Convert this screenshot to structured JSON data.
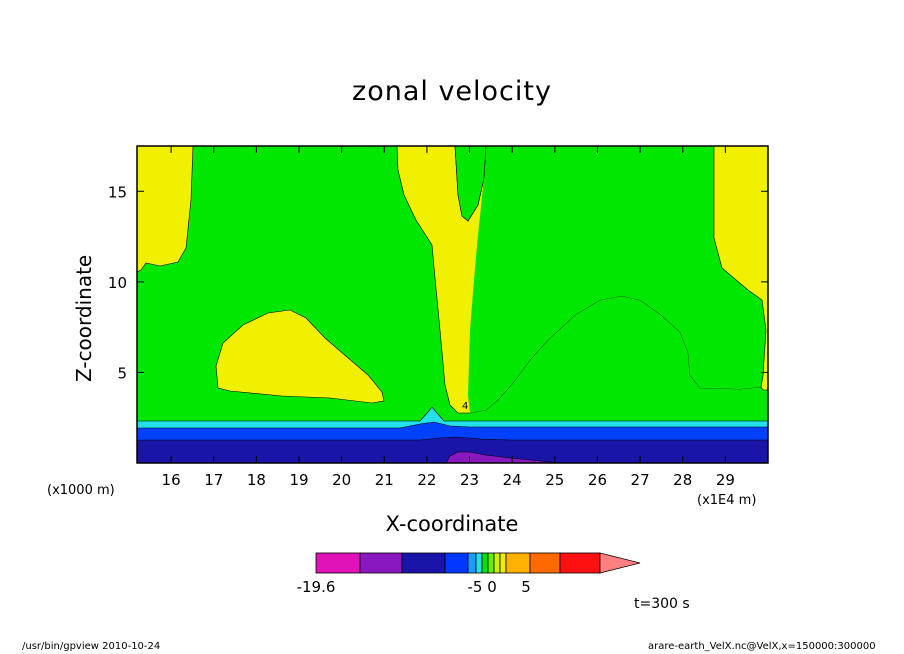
{
  "chart_data": {
    "type": "heatmap",
    "title": "zonal velocity",
    "xlabel": "X-coordinate",
    "ylabel": "Z-coordinate",
    "x_unit_label": "(x1E4 m)",
    "y_unit_label": "(x1000 m)",
    "xlim": [
      15.2,
      30.0
    ],
    "ylim": [
      0.0,
      17.5
    ],
    "x_ticks": [
      "16",
      "17",
      "18",
      "19",
      "20",
      "21",
      "22",
      "23",
      "24",
      "25",
      "26",
      "27",
      "28",
      "29"
    ],
    "y_ticks": [
      "5",
      "10",
      "15"
    ],
    "colorbar": {
      "tick_labels": [
        "-19.6",
        "-5",
        "0",
        "5"
      ],
      "colors": [
        "#e012b8",
        "#8a18c0",
        "#1a14a8",
        "#0038ff",
        "#1a9cff",
        "#22e0e8",
        "#00e600",
        "#66ee00",
        "#ccf000",
        "#eeee00",
        "#ffb000",
        "#ff6a00",
        "#ff1010",
        "#ff8080"
      ]
    },
    "contour_regions": [
      {
        "level": "positive small",
        "color": "#f0f000",
        "areas": [
          "upper-left corner",
          "left mid lobe (x 17-21, z 4-8.5)",
          "central V (x 21-26, z 3-17.5)",
          "right side (x 28-30, z 4-17.5)"
        ]
      },
      {
        "level": "near zero",
        "color": "#00e800",
        "areas": [
          "background above z 2.5"
        ]
      },
      {
        "level": "negative small",
        "color": "#22e0e8",
        "areas": [
          "band z 2-2.5"
        ]
      },
      {
        "level": "negative",
        "color": "#0040ff",
        "areas": [
          "band z 1.5-2"
        ]
      },
      {
        "level": "negative large",
        "color": "#1a14a8",
        "areas": [
          "band z 0-1.5"
        ]
      },
      {
        "level": "most negative",
        "color": "#8a18c0",
        "areas": [
          "small patch near x 22.8, z 0"
        ]
      }
    ],
    "contour_label": "4",
    "annotations": [
      "t=300 s"
    ]
  },
  "footer": {
    "left": "/usr/bin/gpview   2010-10-24",
    "right": "arare-earth_VelX.nc@VelX,x=150000:300000"
  }
}
